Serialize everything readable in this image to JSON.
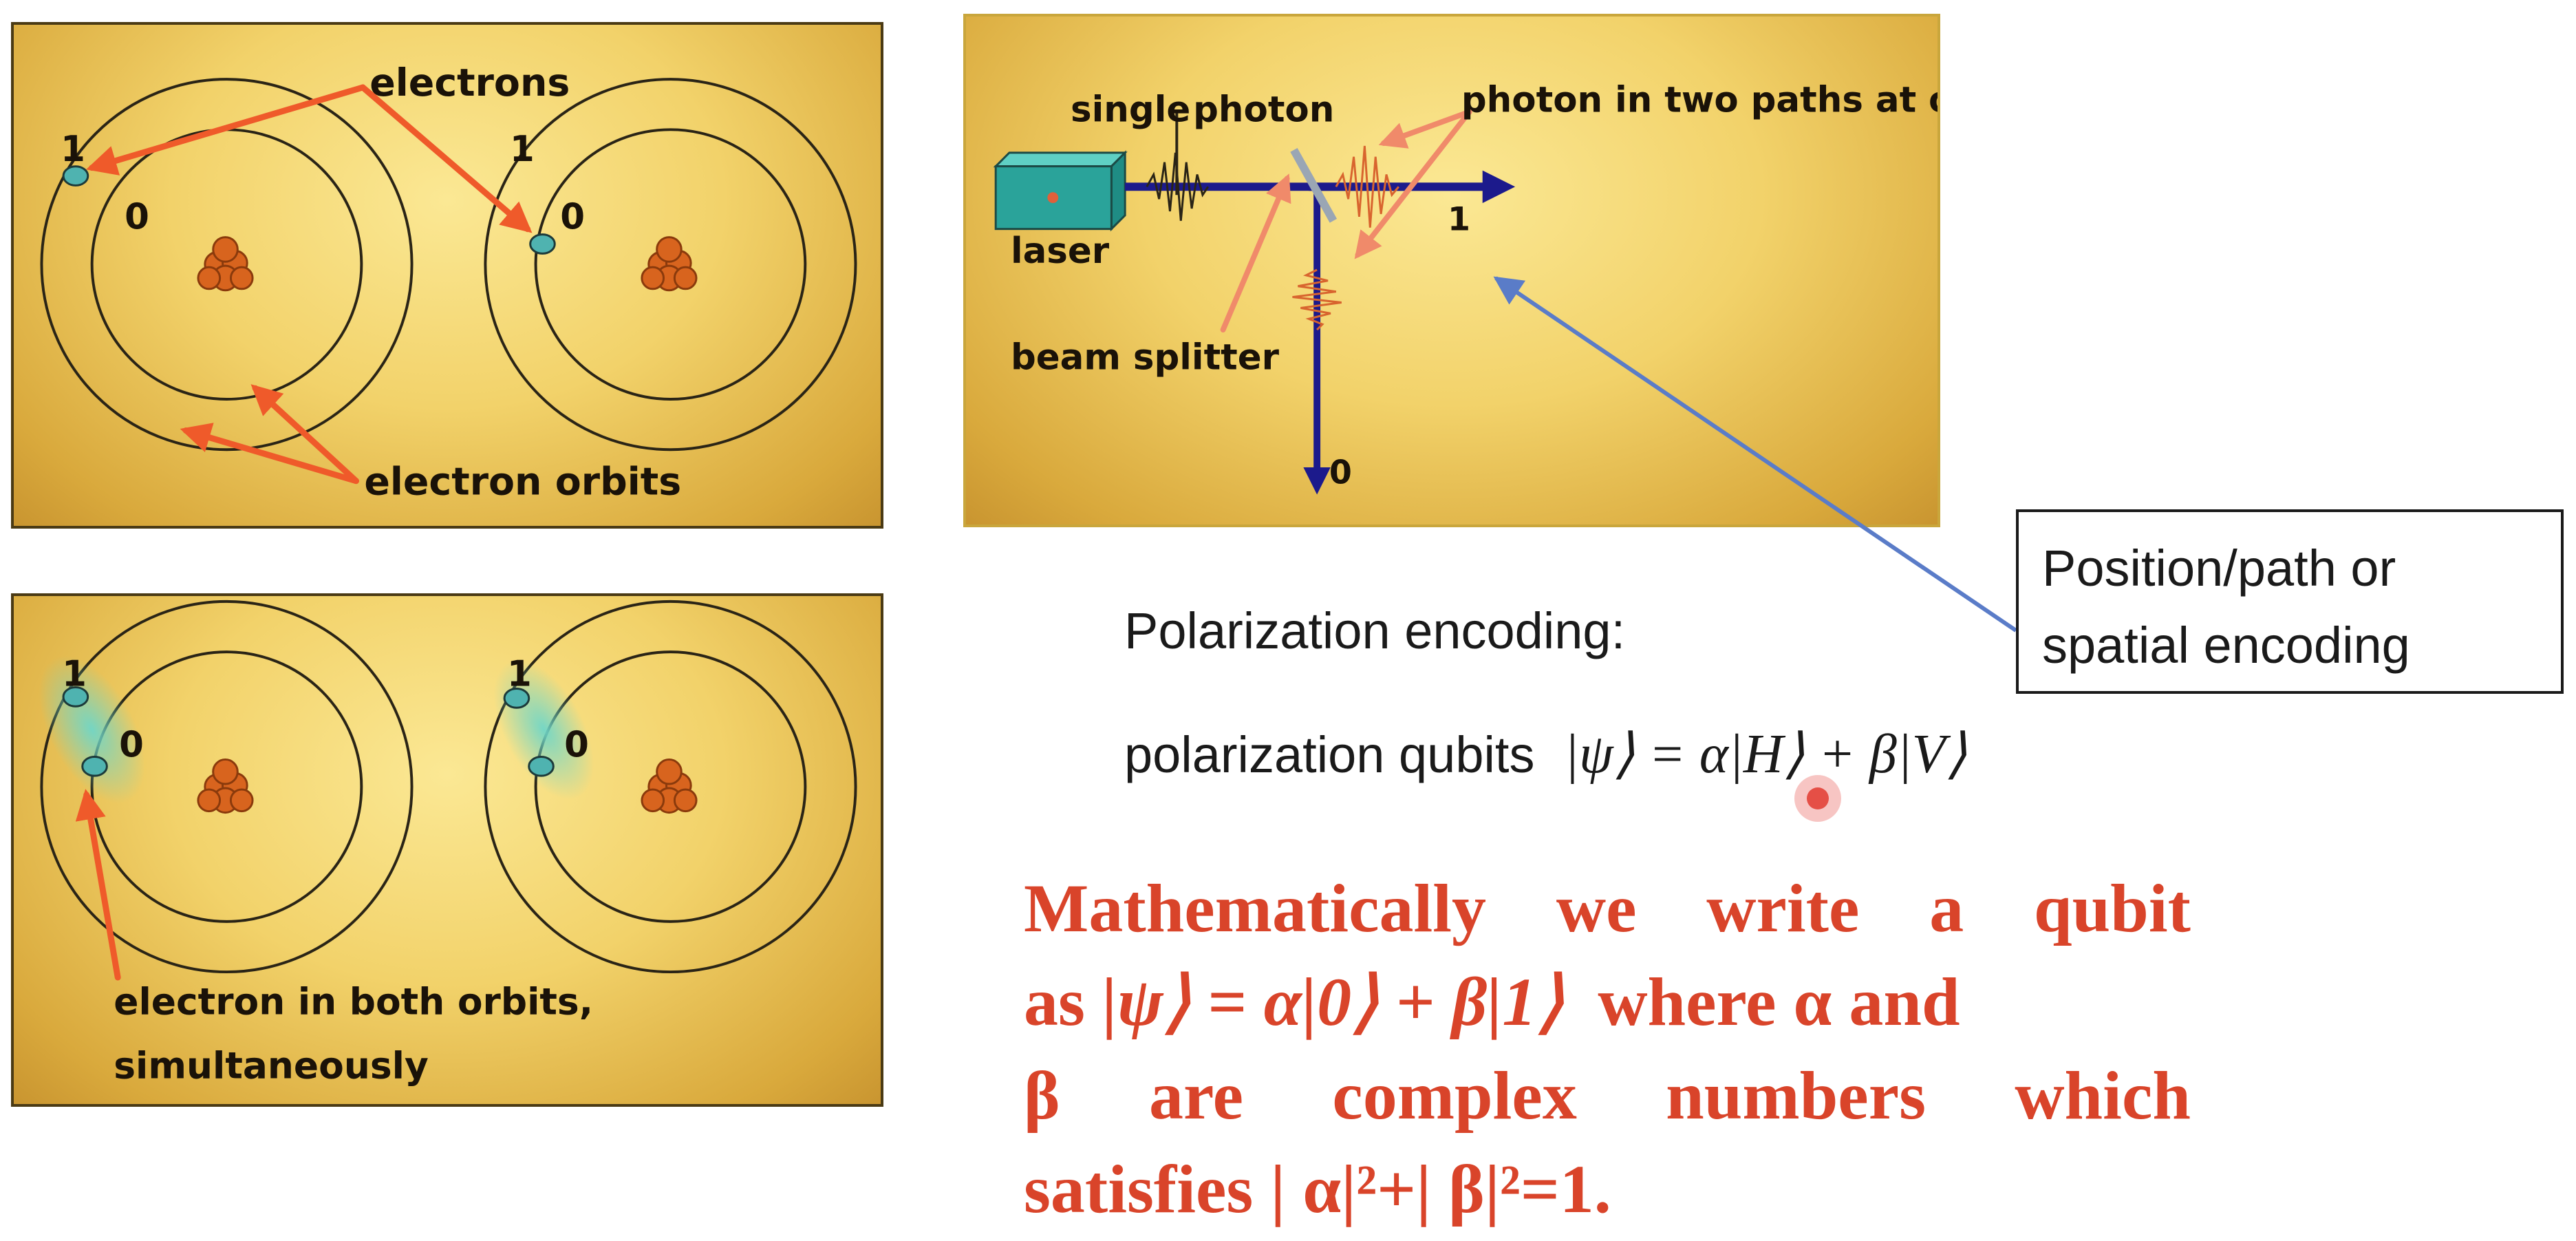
{
  "panel_top_left": {
    "labels": {
      "electrons": "electrons",
      "electron_orbits": "electron orbits",
      "one_a": "1",
      "zero_a": "0",
      "one_b": "1",
      "zero_b": "0"
    }
  },
  "panel_bottom_left": {
    "labels": {
      "one_a": "1",
      "zero_a": "0",
      "one_b": "1",
      "zero_b": "0",
      "caption_line1": "electron in both orbits,",
      "caption_line2": "simultaneously"
    }
  },
  "panel_photon": {
    "labels": {
      "single": "single",
      "photon": "photon",
      "two_paths": "photon in two paths at once",
      "laser": "laser",
      "beam_splitter": "beam splitter",
      "one": "1",
      "zero": "0"
    }
  },
  "spatial_box": {
    "line1": "Position/path or",
    "line2": "spatial encoding"
  },
  "polarization": {
    "heading": "Polarization encoding:",
    "qubits_label": "polarization qubits",
    "formula": "|ψ⟩ = α|H⟩ + β|V⟩"
  },
  "math_statement": {
    "line1": [
      "Mathematically",
      "we",
      "write",
      "a",
      "qubit"
    ],
    "line2_prefix": "as ",
    "line2_formula": "|ψ⟩ = α|0⟩ + β|1⟩",
    "line2_suffix": "  where α and",
    "line3": [
      "β",
      "are",
      "complex",
      "numbers",
      "which"
    ],
    "line4": "satisfies | α|²+| β|²=1."
  },
  "colors": {
    "panel_gold": "#f2d26a",
    "arrow_red": "#ef5a2a",
    "pointer_blue": "#5a7cc8",
    "math_red": "#d9442a",
    "beam_navy": "#1c1a8c",
    "electron_teal": "#4fb3b0",
    "nucleus_orange": "#d8641e",
    "laser_teal": "#2aa39a"
  }
}
